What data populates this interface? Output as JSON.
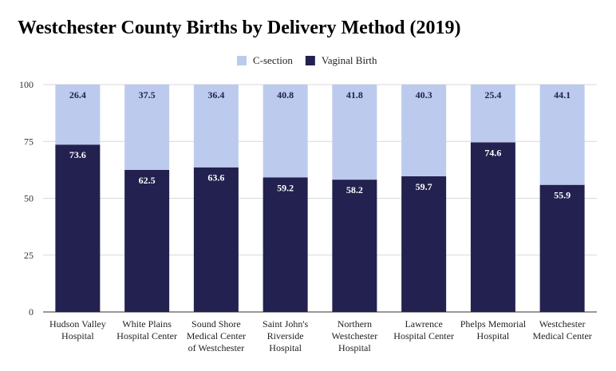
{
  "chart_data": {
    "type": "bar",
    "stacked": true,
    "title": "Westchester County Births by Delivery Method (2019)",
    "categories": [
      [
        "Hudson Valley",
        "Hospital"
      ],
      [
        "White Plains",
        "Hospital Center"
      ],
      [
        "Sound Shore",
        "Medical Center",
        "of Westchester"
      ],
      [
        "Saint John's",
        "Riverside",
        "Hospital"
      ],
      [
        "Northern",
        "Westchester",
        "Hospital"
      ],
      [
        "Lawrence",
        "Hospital Center"
      ],
      [
        "Phelps Memorial",
        "Hospital"
      ],
      [
        "Westchester",
        "Medical Center"
      ]
    ],
    "series": [
      {
        "name": "Vaginal Birth",
        "color": "#22214f",
        "label_color": "#ffffff",
        "values": [
          73.6,
          62.5,
          63.6,
          59.2,
          58.2,
          59.7,
          74.6,
          55.9
        ]
      },
      {
        "name": "C-section",
        "color": "#bccbed",
        "label_color": "#22214f",
        "values": [
          26.4,
          37.5,
          36.4,
          40.8,
          41.8,
          40.3,
          25.4,
          44.1
        ]
      }
    ],
    "legend_order": [
      "C-section",
      "Vaginal Birth"
    ],
    "legend_position": "top-center",
    "ylim": [
      0,
      100
    ],
    "yticks": [
      0,
      25,
      50,
      75,
      100
    ],
    "grid": true,
    "data_labels": true,
    "xlabel": "",
    "ylabel": ""
  }
}
